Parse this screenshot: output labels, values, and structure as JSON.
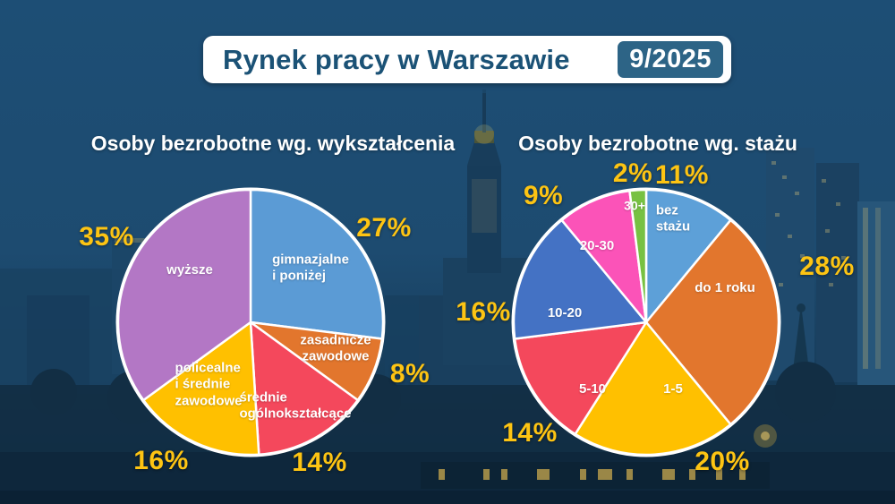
{
  "header": {
    "title": "Rynek pracy w Warszawie",
    "period": "9/2025"
  },
  "colors": {
    "background": "#1d4e75",
    "accent_yellow": "#fdc413",
    "banner_text": "#1b5276",
    "badge_background": "#2d6486",
    "slice_border": "#ffffff"
  },
  "chart_data": [
    {
      "type": "pie",
      "title": "Osoby bezrobotne wg. wykształcenia",
      "unit": "%",
      "legend_position": "inside-slices",
      "start_angle_deg": 0,
      "direction": "clockwise",
      "slices": [
        {
          "label": "gimnazjalne\ni poniżej",
          "value": 27,
          "color": "#5b9bd5"
        },
        {
          "label": "zasadnicze\nzawodowe",
          "value": 8,
          "color": "#e2762d"
        },
        {
          "label": "średnie\nogólnokształcące",
          "value": 14,
          "color": "#f4485c"
        },
        {
          "label": "policealne\ni średnie\nzawodowe",
          "value": 16,
          "color": "#ffc000"
        },
        {
          "label": "wyższe",
          "value": 35,
          "color": "#b377c5"
        }
      ]
    },
    {
      "type": "pie",
      "title": "Osoby bezrobotne wg. stażu",
      "unit": "%",
      "legend_position": "inside-slices",
      "start_angle_deg": 0,
      "direction": "clockwise",
      "slices": [
        {
          "label": "bez\nstażu",
          "value": 11,
          "color": "#5da0d8"
        },
        {
          "label": "do 1 roku",
          "value": 28,
          "color": "#e2762d"
        },
        {
          "label": "1-5",
          "value": 20,
          "color": "#ffc000"
        },
        {
          "label": "5-10",
          "value": 14,
          "color": "#f4485c"
        },
        {
          "label": "10-20",
          "value": 16,
          "color": "#4472c4"
        },
        {
          "label": "20-30",
          "value": 9,
          "color": "#fb53b8"
        },
        {
          "label": "30+",
          "value": 2,
          "color": "#77c142"
        }
      ]
    }
  ]
}
